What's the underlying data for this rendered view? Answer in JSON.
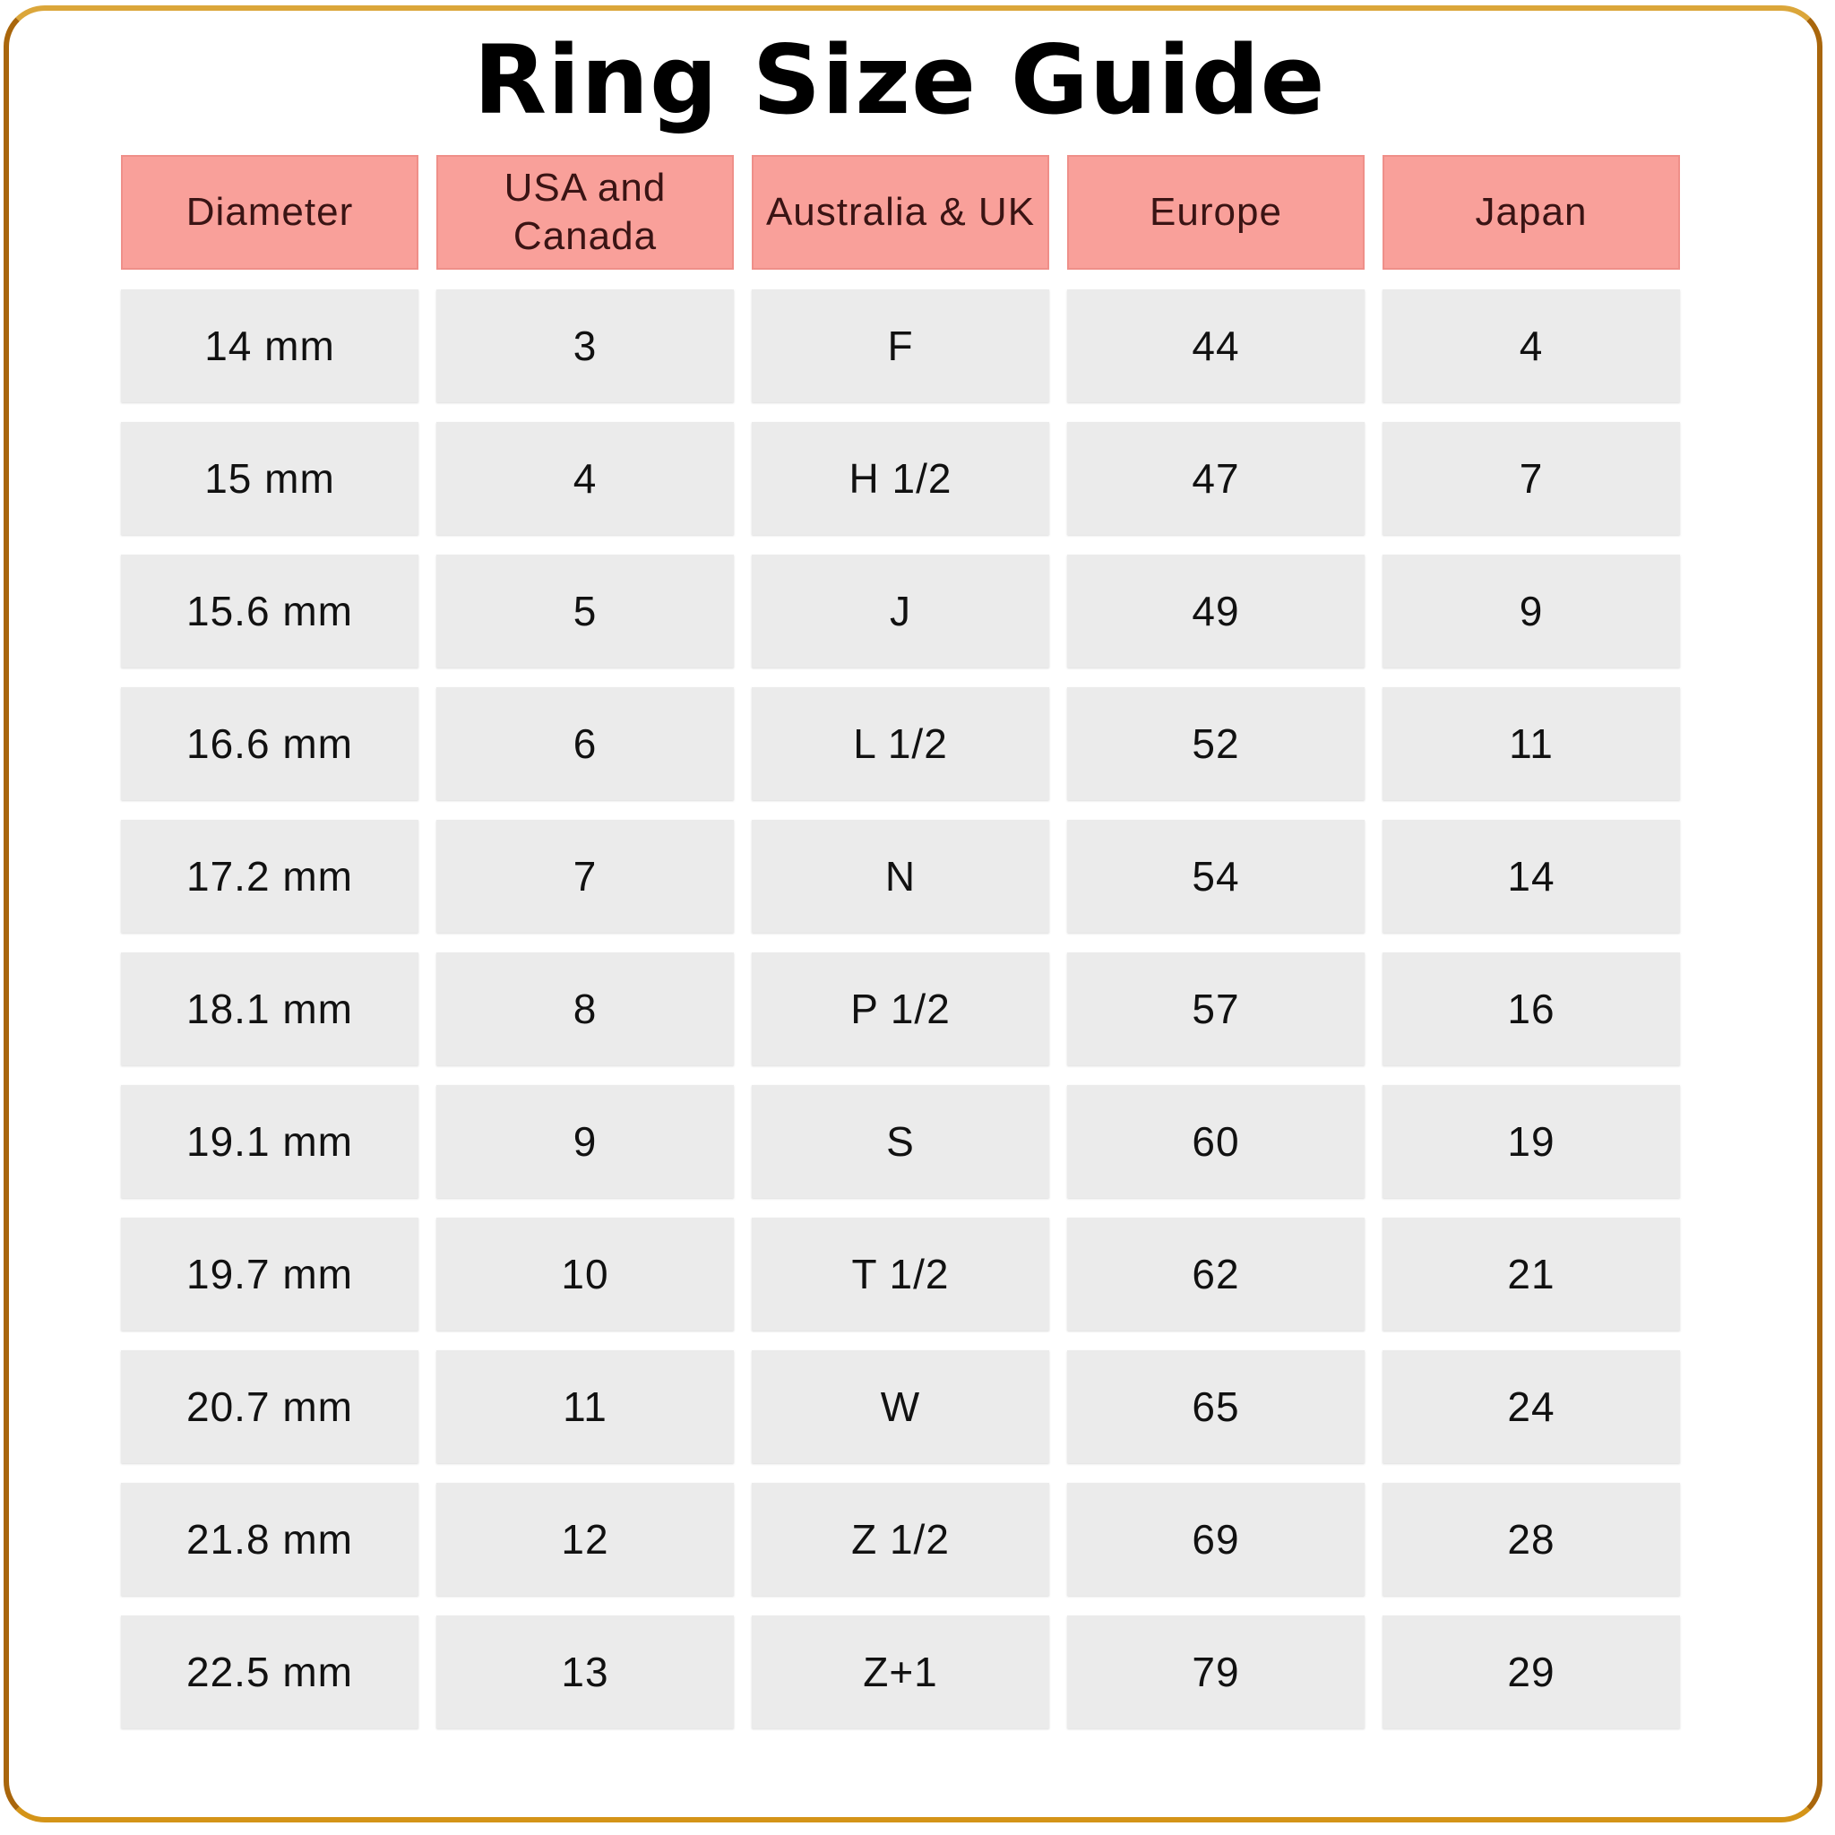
{
  "title": "Ring Size Guide",
  "colors": {
    "header_bg": "#f9a09a",
    "cell_bg": "#ebebeb",
    "frame": "#c8870e"
  },
  "table": {
    "headers": [
      "Diameter",
      "USA and Canada",
      "Australia & UK",
      "Europe",
      "Japan"
    ],
    "rows": [
      [
        "14 mm",
        "3",
        "F",
        "44",
        "4"
      ],
      [
        "15 mm",
        "4",
        "H 1/2",
        "47",
        "7"
      ],
      [
        "15.6 mm",
        "5",
        "J",
        "49",
        "9"
      ],
      [
        "16.6 mm",
        "6",
        "L 1/2",
        "52",
        "11"
      ],
      [
        "17.2 mm",
        "7",
        "N",
        "54",
        "14"
      ],
      [
        "18.1 mm",
        "8",
        "P 1/2",
        "57",
        "16"
      ],
      [
        "19.1 mm",
        "9",
        "S",
        "60",
        "19"
      ],
      [
        "19.7 mm",
        "10",
        "T 1/2",
        "62",
        "21"
      ],
      [
        "20.7 mm",
        "11",
        "W",
        "65",
        "24"
      ],
      [
        "21.8 mm",
        "12",
        "Z 1/2",
        "69",
        "28"
      ],
      [
        "22.5 mm",
        "13",
        "Z+1",
        "79",
        "29"
      ]
    ]
  }
}
